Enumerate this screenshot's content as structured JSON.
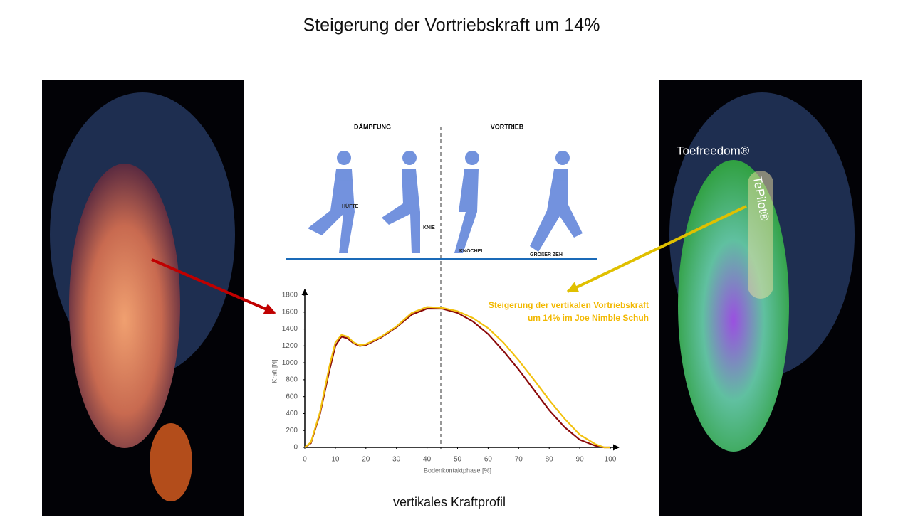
{
  "header": {
    "title": "Steigerung der Vortriebskraft um 14%"
  },
  "caption": "vertikales Kraftprofil",
  "phases": [
    "DÄMPFUNG",
    "VORTRIEB"
  ],
  "joints": [
    "HÜFTE",
    "KNIE",
    "KNÖCHEL",
    "GROßER ZEH"
  ],
  "right_image": {
    "label": "Toefreedom®",
    "insole": "TePilot®"
  },
  "chart_data": {
    "type": "line",
    "x": [
      0,
      2,
      5,
      8,
      10,
      12,
      14,
      16,
      18,
      20,
      25,
      30,
      35,
      40,
      45,
      50,
      55,
      60,
      65,
      70,
      75,
      80,
      85,
      90,
      95,
      98,
      100
    ],
    "series": [
      {
        "color": "#8b0a0a",
        "values": [
          0,
          50,
          400,
          900,
          1200,
          1310,
          1290,
          1230,
          1200,
          1210,
          1300,
          1420,
          1570,
          1640,
          1640,
          1590,
          1490,
          1340,
          1140,
          920,
          680,
          440,
          240,
          90,
          20,
          0,
          0
        ]
      },
      {
        "color": "#f2c10f",
        "values": [
          0,
          60,
          420,
          950,
          1240,
          1330,
          1310,
          1240,
          1210,
          1220,
          1310,
          1430,
          1590,
          1660,
          1650,
          1610,
          1530,
          1410,
          1240,
          1030,
          800,
          560,
          340,
          150,
          40,
          0,
          0
        ]
      }
    ],
    "xlim": [
      0,
      100
    ],
    "ylim": [
      0,
      1800
    ],
    "xticks": [
      0,
      10,
      20,
      30,
      40,
      50,
      60,
      70,
      80,
      90,
      100
    ],
    "yticks": [
      0,
      200,
      400,
      600,
      800,
      1000,
      1200,
      1400,
      1600,
      1800
    ],
    "xlabel": "Bodenkontaktphase [%]",
    "ylabel": "Kraft [N]",
    "annotation": [
      "Steigerung der vertikalen Vortriebskraft",
      "um 14% im Joe Nimble Schuh"
    ]
  }
}
